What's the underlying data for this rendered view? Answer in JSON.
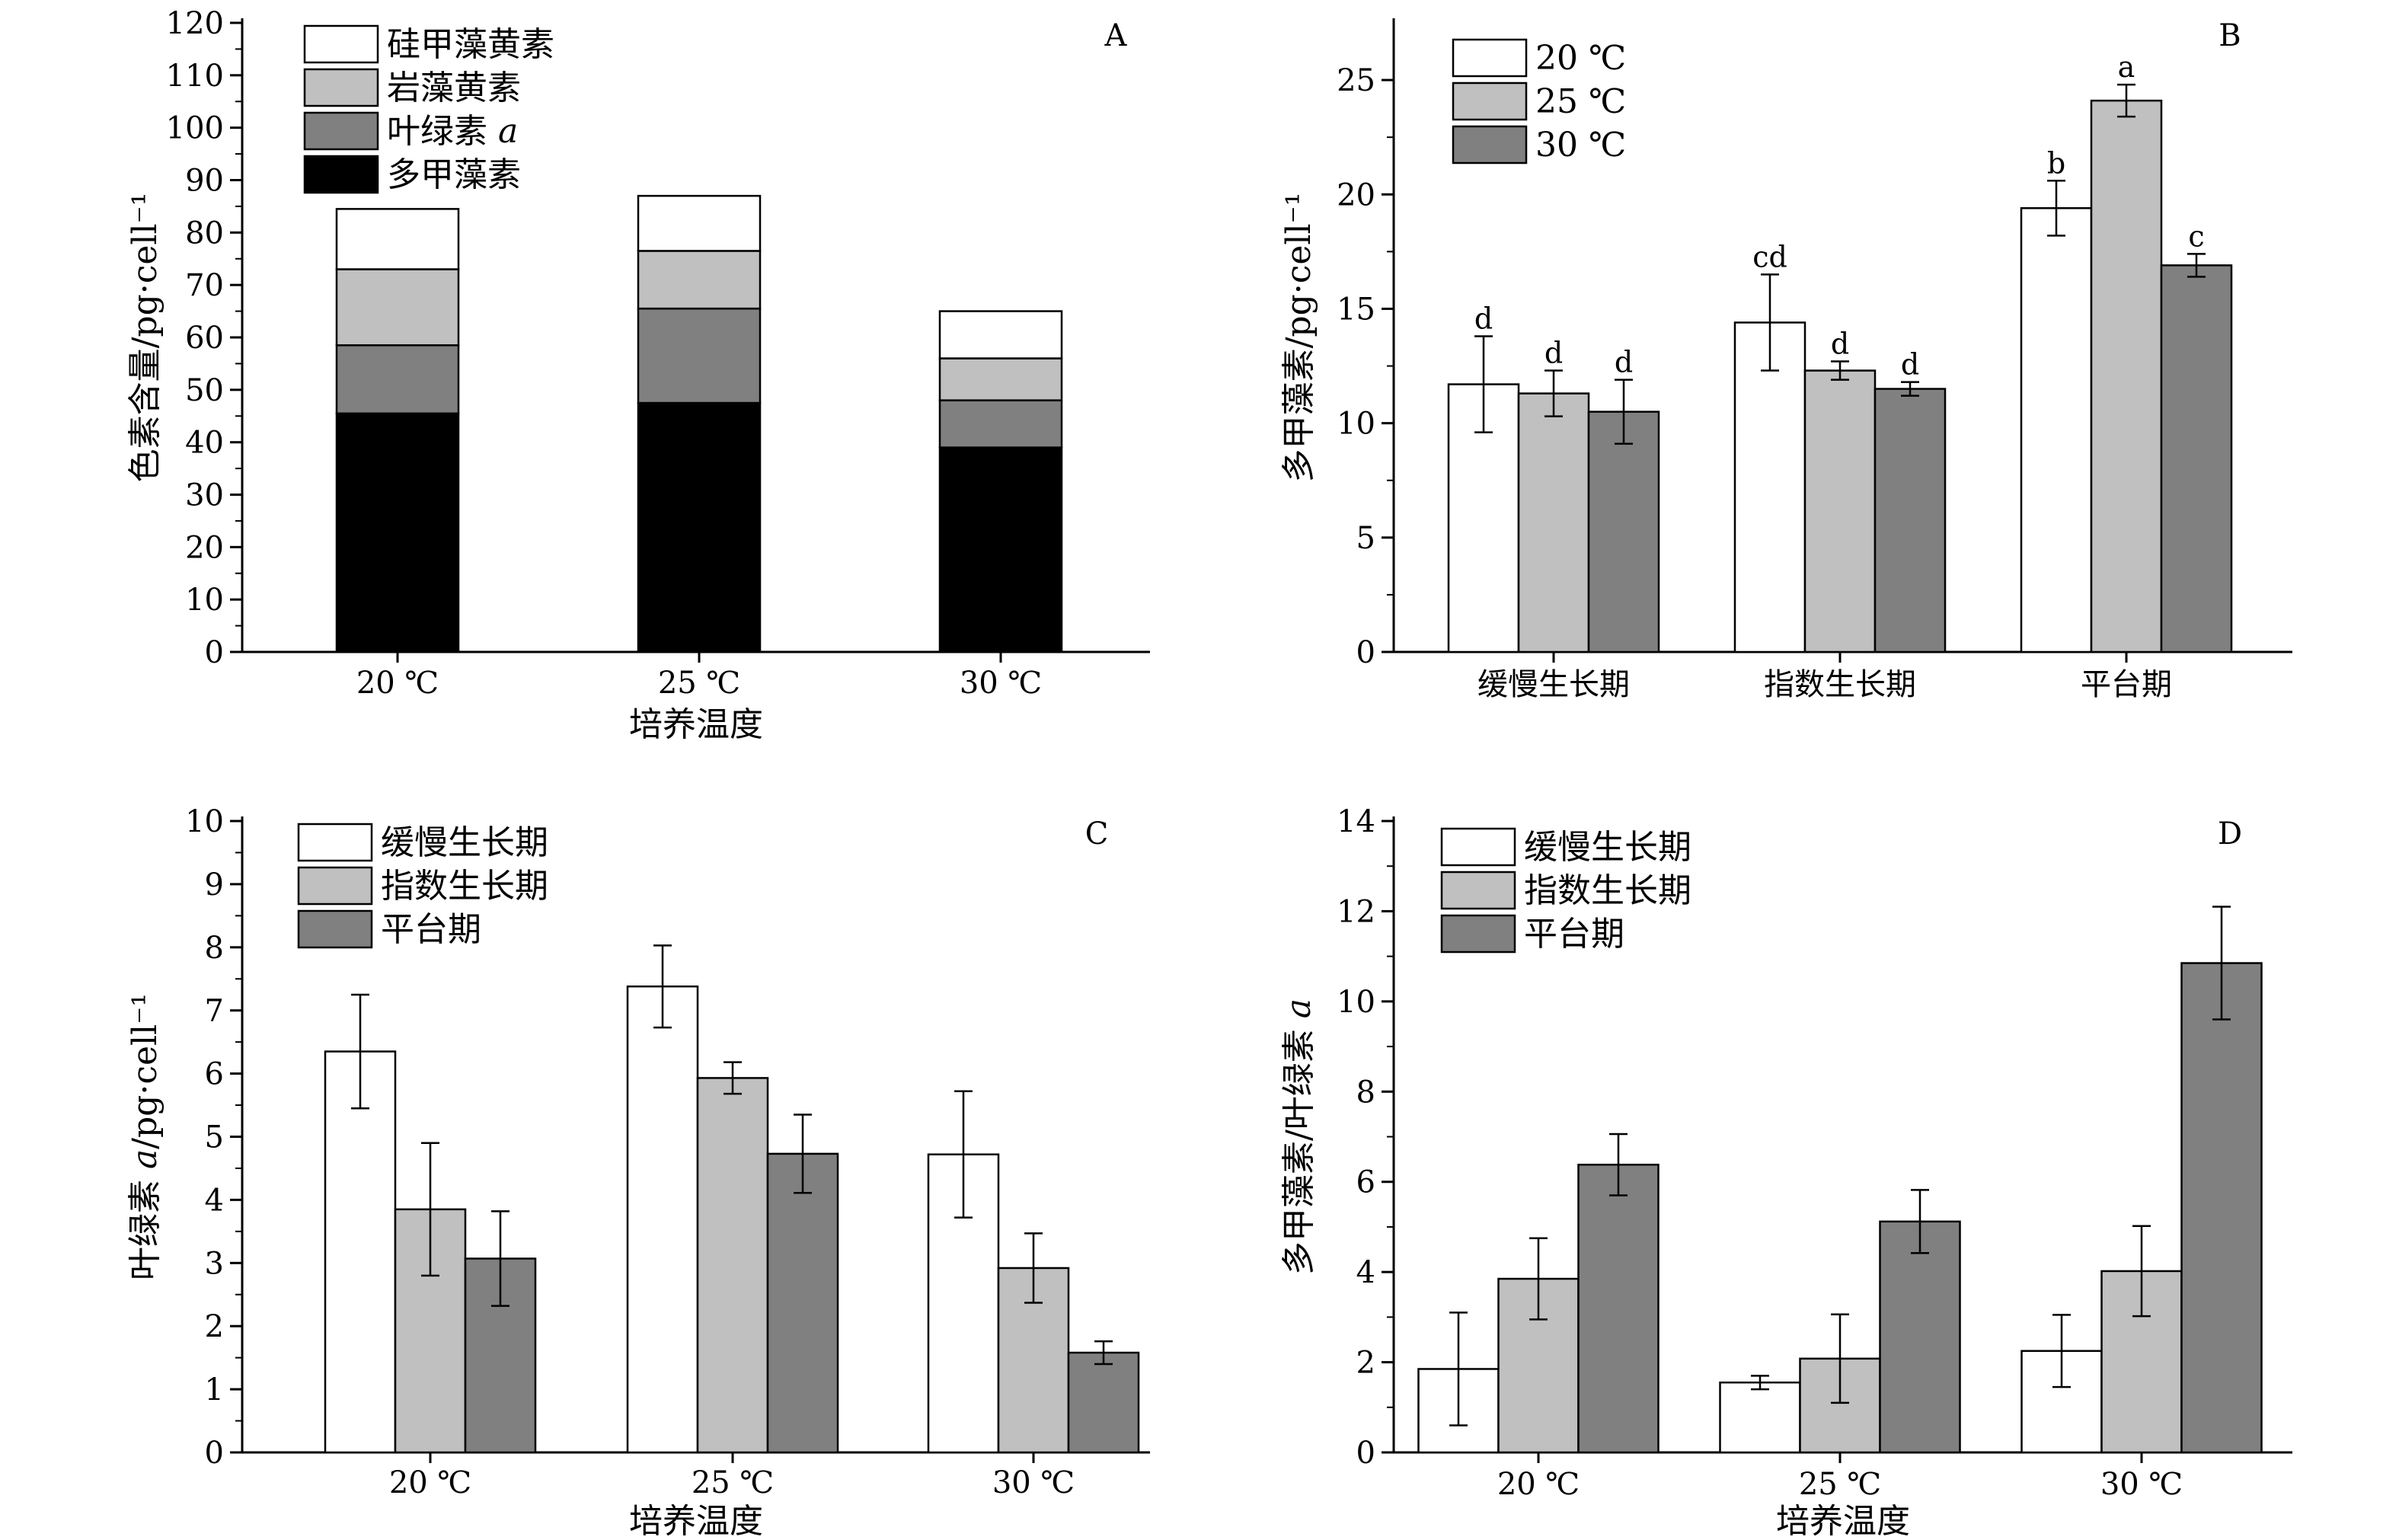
{
  "chart_data": [
    {
      "id": "A",
      "type": "bar",
      "stacked": true,
      "panel_label": "A",
      "xlabel": "培养温度",
      "ylabel": "色素含量/pg·cell⁻¹",
      "categories": [
        "20 ℃",
        "25 ℃",
        "30 ℃"
      ],
      "ylim": [
        0,
        120
      ],
      "yticks": [
        0,
        10,
        20,
        30,
        40,
        50,
        60,
        70,
        80,
        90,
        100,
        110,
        120
      ],
      "series": [
        {
          "name": "多甲藻素",
          "color": "#000000",
          "values": [
            45.5,
            47.5,
            39
          ]
        },
        {
          "name": "叶绿素 a",
          "color": "#808080",
          "values": [
            13,
            18,
            9
          ]
        },
        {
          "name": "岩藻黄素",
          "color": "#c0c0c0",
          "values": [
            14.5,
            11,
            8
          ]
        },
        {
          "name": "硅甲藻黄素",
          "color": "#ffffff",
          "values": [
            11.5,
            10.5,
            9
          ]
        }
      ],
      "legend_position": "top-left",
      "grid": false
    },
    {
      "id": "B",
      "type": "bar",
      "panel_label": "B",
      "xlabel": "",
      "ylabel": "多甲藻素/pg·cell⁻¹",
      "categories": [
        "缓慢生长期",
        "指数生长期",
        "平台期"
      ],
      "ylim": [
        0,
        27.5
      ],
      "yticks": [
        0,
        5,
        10,
        15,
        20,
        25
      ],
      "series": [
        {
          "name": "20 ℃",
          "color": "#ffffff",
          "values": [
            11.7,
            14.4,
            19.4
          ],
          "errors": [
            2.1,
            2.1,
            1.2
          ],
          "labels": [
            "d",
            "cd",
            "b"
          ]
        },
        {
          "name": "25 ℃",
          "color": "#c0c0c0",
          "values": [
            11.3,
            12.3,
            24.1
          ],
          "errors": [
            1.0,
            0.4,
            0.7
          ],
          "labels": [
            "d",
            "d",
            "a"
          ]
        },
        {
          "name": "30 ℃",
          "color": "#808080",
          "values": [
            10.5,
            11.5,
            16.9
          ],
          "errors": [
            1.4,
            0.3,
            0.5
          ],
          "labels": [
            "d",
            "d",
            "c"
          ]
        }
      ],
      "legend_position": "top-left",
      "grid": false
    },
    {
      "id": "C",
      "type": "bar",
      "panel_label": "C",
      "xlabel": "培养温度",
      "ylabel_prefix": "叶绿素 ",
      "ylabel_italic": "a",
      "ylabel_suffix": "/pg·cell⁻¹",
      "categories": [
        "20 ℃",
        "25 ℃",
        "30 ℃"
      ],
      "ylim": [
        0,
        10
      ],
      "yticks": [
        0,
        1,
        2,
        3,
        4,
        5,
        6,
        7,
        8,
        9,
        10
      ],
      "series": [
        {
          "name": "缓慢生长期",
          "color": "#ffffff",
          "values": [
            6.35,
            7.38,
            4.72
          ],
          "errors": [
            0.9,
            0.65,
            1.0
          ]
        },
        {
          "name": "指数生长期",
          "color": "#c0c0c0",
          "values": [
            3.85,
            5.93,
            2.92
          ],
          "errors": [
            1.05,
            0.25,
            0.55
          ]
        },
        {
          "name": "平台期",
          "color": "#808080",
          "values": [
            3.07,
            4.73,
            1.58
          ],
          "errors": [
            0.75,
            0.62,
            0.18
          ]
        }
      ],
      "legend_position": "top-left",
      "grid": false
    },
    {
      "id": "D",
      "type": "bar",
      "panel_label": "D",
      "xlabel": "培养温度",
      "ylabel_prefix": "多甲藻素/叶绿素 ",
      "ylabel_italic": "a",
      "ylabel_suffix": "",
      "categories": [
        "20 ℃",
        "25 ℃",
        "30 ℃"
      ],
      "ylim": [
        0,
        14
      ],
      "yticks": [
        0,
        2,
        4,
        6,
        8,
        10,
        12,
        14
      ],
      "series": [
        {
          "name": "缓慢生长期",
          "color": "#ffffff",
          "values": [
            1.85,
            1.55,
            2.25
          ],
          "errors": [
            1.25,
            0.15,
            0.8
          ]
        },
        {
          "name": "指数生长期",
          "color": "#c0c0c0",
          "values": [
            3.85,
            2.08,
            4.02
          ],
          "errors": [
            0.9,
            0.98,
            1.0
          ]
        },
        {
          "name": "平台期",
          "color": "#808080",
          "values": [
            6.38,
            5.12,
            10.85
          ],
          "errors": [
            0.68,
            0.7,
            1.25
          ]
        }
      ],
      "legend_position": "top-left",
      "grid": false
    }
  ]
}
